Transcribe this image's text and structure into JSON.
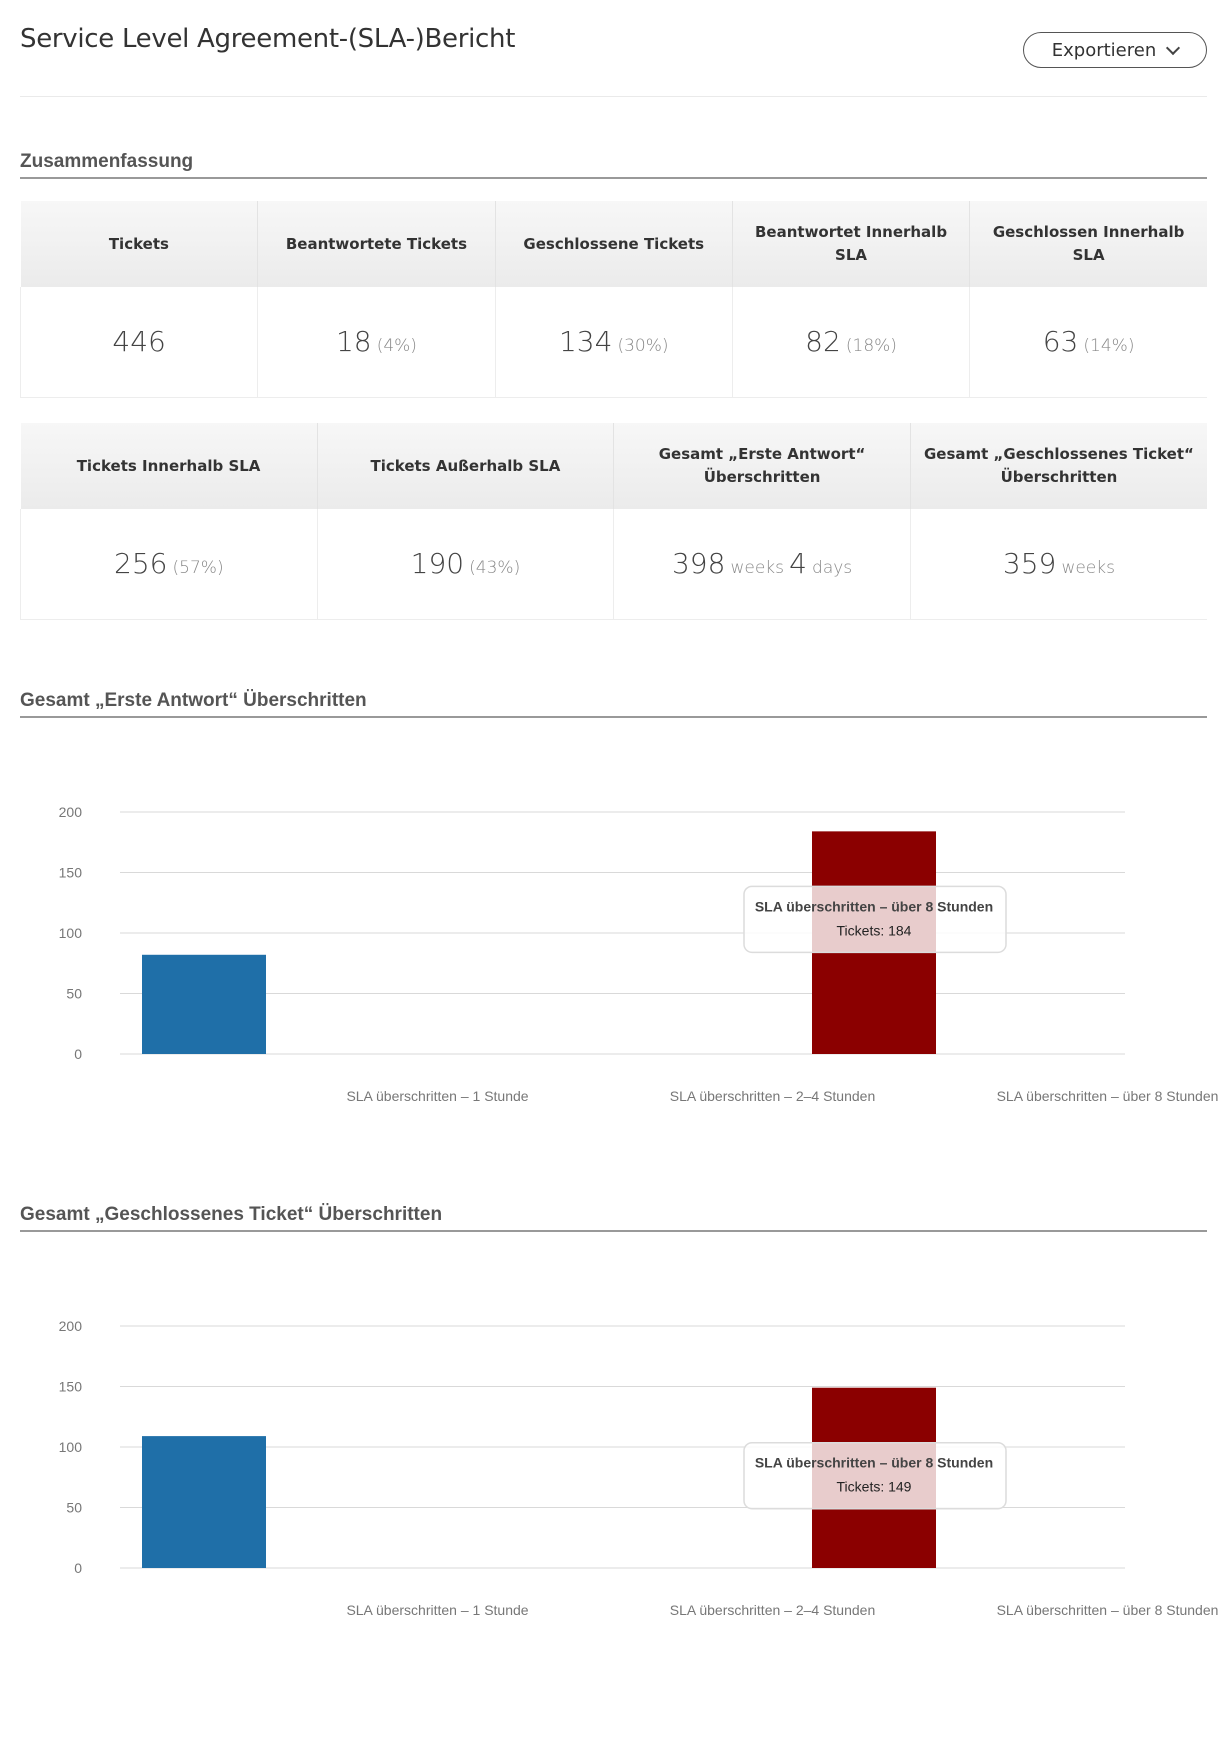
{
  "header": {
    "title": "Service Level Agreement-(SLA-)Bericht",
    "export_label": "Exportieren"
  },
  "summary": {
    "title": "Zusammenfassung",
    "row1": [
      {
        "label": "Tickets",
        "value": "446",
        "pct": ""
      },
      {
        "label": "Beantwortete Tickets",
        "value": "18",
        "pct": "(4%)"
      },
      {
        "label": "Geschlossene Tickets",
        "value": "134",
        "pct": "(30%)"
      },
      {
        "label": "Beantwortet Innerhalb SLA",
        "value": "82",
        "pct": "(18%)"
      },
      {
        "label": "Geschlossen Innerhalb SLA",
        "value": "63",
        "pct": "(14%)"
      }
    ],
    "row2": [
      {
        "label": "Tickets Innerhalb SLA",
        "value": "256",
        "pct": "(57%)"
      },
      {
        "label": "Tickets Außerhalb SLA",
        "value": "190",
        "pct": "(43%)"
      },
      {
        "label": "Gesamt „Erste Antwort“ Überschritten",
        "value": "398",
        "unit1": "weeks",
        "value2": "4",
        "unit2": "days"
      },
      {
        "label": "Gesamt „Geschlossenes Ticket“ Überschritten",
        "value": "359",
        "unit1": "weeks"
      }
    ]
  },
  "colors": {
    "bar_1h": "#1f6fa8",
    "bar_8h": "#8b0000"
  },
  "chart_data": [
    {
      "type": "bar",
      "title": "Gesamt „Erste Antwort“ Überschritten",
      "categories": [
        "SLA überschritten – 1 Stunde",
        "SLA überschritten – 2–4 Stunden",
        "SLA überschritten – über 8 Stunden"
      ],
      "values": [
        82,
        0,
        184
      ],
      "colors": [
        "#1f6fa8",
        "#1f6fa8",
        "#8b0000"
      ],
      "ylim": [
        0,
        200
      ],
      "yticks": [
        0,
        50,
        100,
        150,
        200
      ],
      "grid": true,
      "tooltip": {
        "title": "SLA überschritten – über 8 Stunden",
        "text": "Tickets: 184"
      }
    },
    {
      "type": "bar",
      "title": "Gesamt „Geschlossenes Ticket“ Überschritten",
      "categories": [
        "SLA überschritten – 1 Stunde",
        "SLA überschritten – 2–4 Stunden",
        "SLA überschritten – über 8 Stunden"
      ],
      "values": [
        109,
        0,
        149
      ],
      "colors": [
        "#1f6fa8",
        "#1f6fa8",
        "#8b0000"
      ],
      "ylim": [
        0,
        200
      ],
      "yticks": [
        0,
        50,
        100,
        150,
        200
      ],
      "grid": true,
      "tooltip": {
        "title": "SLA überschritten – über 8 Stunden",
        "text": "Tickets: 149"
      }
    }
  ]
}
